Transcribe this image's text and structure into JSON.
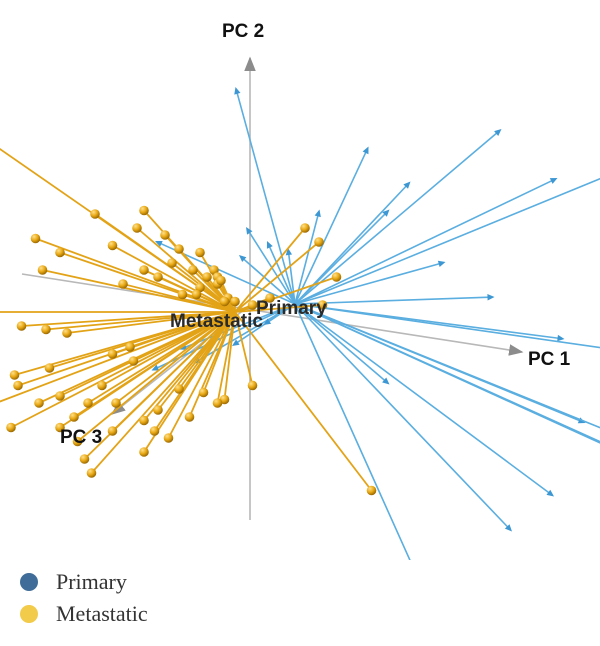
{
  "chart_data": {
    "type": "scatter",
    "subtype": "3d-biplot",
    "axes": {
      "x_label": "PC 1",
      "y_label": "PC 2",
      "z_label": "PC 3"
    },
    "centroid_labels": [
      "Primary",
      "Metastatic"
    ],
    "series": [
      {
        "name": "Primary",
        "marker": "arrow",
        "color": "#5aaee0",
        "legend_color": "#3f6c98",
        "projected_points": [
          [
            -17,
            62
          ],
          [
            59,
            50
          ],
          [
            75,
            36
          ],
          [
            21,
            45
          ],
          [
            112,
            46
          ],
          [
            33,
            35
          ],
          [
            27,
            27
          ],
          [
            7,
            27
          ],
          [
            -16,
            14
          ],
          [
            -40,
            18
          ],
          [
            -14,
            22
          ],
          [
            -8,
            18
          ],
          [
            -2,
            16
          ],
          [
            43,
            12
          ],
          [
            57,
            2
          ],
          [
            77,
            -10
          ],
          [
            98,
            -14
          ],
          [
            83,
            -34
          ],
          [
            101,
            -46
          ],
          [
            148,
            -60
          ],
          [
            113,
            -51
          ],
          [
            74,
            -55
          ],
          [
            62,
            -65
          ],
          [
            35,
            -78
          ],
          [
            -18,
            -12
          ],
          [
            -29,
            -17
          ],
          [
            -41,
            -19
          ],
          [
            -33,
            -13
          ],
          [
            -9,
            -6
          ],
          [
            27,
            -23
          ]
        ]
      },
      {
        "name": "Metastatic",
        "marker": "ball",
        "color": "#e3a317",
        "legend_color": "#f2cb4a",
        "projected_points": [
          [
            -75,
            52
          ],
          [
            -40,
            28
          ],
          [
            -26,
            29
          ],
          [
            -28,
            24
          ],
          [
            -57,
            21
          ],
          [
            -50,
            17
          ],
          [
            -35,
            19
          ],
          [
            -20,
            22
          ],
          [
            -16,
            18
          ],
          [
            -10,
            17
          ],
          [
            -18,
            14
          ],
          [
            -32,
            8
          ],
          [
            -26,
            12
          ],
          [
            -22,
            10
          ],
          [
            -12,
            12
          ],
          [
            -6,
            12
          ],
          [
            -5,
            10
          ],
          [
            -5,
            8
          ],
          [
            -15,
            5
          ],
          [
            -2,
            4
          ],
          [
            0,
            3
          ],
          [
            -3,
            3
          ],
          [
            8,
            2
          ],
          [
            5,
            2
          ],
          [
            10,
            4
          ],
          [
            20,
            24
          ],
          [
            24,
            20
          ],
          [
            29,
            10
          ],
          [
            25,
            2
          ],
          [
            -10,
            7
          ],
          [
            -11,
            5
          ],
          [
            -4,
            9
          ],
          [
            -8,
            10
          ],
          [
            -55,
            12
          ],
          [
            -99,
            0
          ],
          [
            -54,
            -5
          ],
          [
            -61,
            -4
          ],
          [
            -48,
            -6
          ],
          [
            -30,
            -10
          ],
          [
            -35,
            -12
          ],
          [
            -29,
            -14
          ],
          [
            -53,
            -16
          ],
          [
            -63,
            -18
          ],
          [
            -62,
            -21
          ],
          [
            -38,
            -21
          ],
          [
            -50,
            -24
          ],
          [
            -56,
            -26
          ],
          [
            -42,
            -26
          ],
          [
            -34,
            -26
          ],
          [
            -46,
            -30
          ],
          [
            -64,
            -33
          ],
          [
            -50,
            -33
          ],
          [
            -45,
            -37
          ],
          [
            -84,
            -32
          ],
          [
            -43,
            -42
          ],
          [
            -41,
            -46
          ],
          [
            -35,
            -34
          ],
          [
            -16,
            -22
          ],
          [
            -9,
            -23
          ],
          [
            -22,
            -28
          ],
          [
            -3,
            -25
          ],
          [
            -13,
            -30
          ],
          [
            -26,
            -31
          ],
          [
            -19,
            -36
          ],
          [
            -26,
            -40
          ],
          [
            -23,
            -34
          ],
          [
            -5,
            -26
          ],
          [
            5,
            -21
          ],
          [
            39,
            -51
          ]
        ]
      }
    ]
  },
  "legend": [
    {
      "label": "Primary",
      "color": "#3f6c98"
    },
    {
      "label": "Metastatic",
      "color": "#f2cb4a"
    }
  ]
}
